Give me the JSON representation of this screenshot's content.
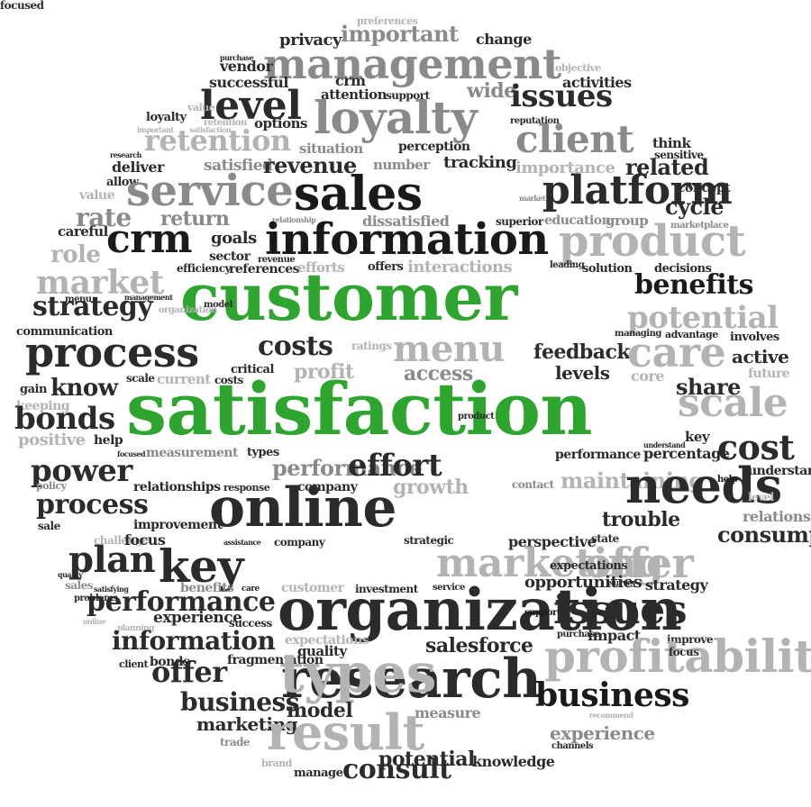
{
  "words": [
    {
      "text": "preferences",
      "tone": "l"
    },
    {
      "text": "privacy",
      "tone": "d"
    },
    {
      "text": "important",
      "tone": "g"
    },
    {
      "text": "change",
      "tone": "d"
    },
    {
      "text": "management",
      "tone": "g"
    },
    {
      "text": "vendor",
      "tone": "d"
    },
    {
      "text": "purchase",
      "tone": "d"
    },
    {
      "text": "crm",
      "tone": "d"
    },
    {
      "text": "objective",
      "tone": "l"
    },
    {
      "text": "successful",
      "tone": "d"
    },
    {
      "text": "activities",
      "tone": "d"
    },
    {
      "text": "attention",
      "tone": "d"
    },
    {
      "text": "support",
      "tone": "d"
    },
    {
      "text": "wide",
      "tone": "g"
    },
    {
      "text": "issues",
      "tone": "d"
    },
    {
      "text": "level",
      "tone": "d"
    },
    {
      "text": "loyalty",
      "tone": "g"
    },
    {
      "text": "value",
      "tone": "l"
    },
    {
      "text": "loyalty",
      "tone": "d"
    },
    {
      "text": "retention",
      "tone": "l"
    },
    {
      "text": "reputation",
      "tone": "d"
    },
    {
      "text": "options",
      "tone": "d"
    },
    {
      "text": "important",
      "tone": "l"
    },
    {
      "text": "satisfaction",
      "tone": "l"
    },
    {
      "text": "retention",
      "tone": "l"
    },
    {
      "text": "client",
      "tone": "g"
    },
    {
      "text": "think",
      "tone": "d"
    },
    {
      "text": "situation",
      "tone": "g"
    },
    {
      "text": "perception",
      "tone": "d"
    },
    {
      "text": "sensitive",
      "tone": "d"
    },
    {
      "text": "research",
      "tone": "d"
    },
    {
      "text": "deliver",
      "tone": "d"
    },
    {
      "text": "satisfied",
      "tone": "g"
    },
    {
      "text": "revenue",
      "tone": "d"
    },
    {
      "text": "number",
      "tone": "g"
    },
    {
      "text": "tracking",
      "tone": "d"
    },
    {
      "text": "importance",
      "tone": "l"
    },
    {
      "text": "related",
      "tone": "d"
    },
    {
      "text": "allow",
      "tone": "d"
    },
    {
      "text": "value",
      "tone": "l"
    },
    {
      "text": "service",
      "tone": "g"
    },
    {
      "text": "sales",
      "tone": "k"
    },
    {
      "text": "platform",
      "tone": "d"
    },
    {
      "text": "concept",
      "tone": "d"
    },
    {
      "text": "market",
      "tone": "g"
    },
    {
      "text": "cycle",
      "tone": "d"
    },
    {
      "text": "rate",
      "tone": "g"
    },
    {
      "text": "return",
      "tone": "g"
    },
    {
      "text": "relationship",
      "tone": "g"
    },
    {
      "text": "dissatisfied",
      "tone": "g"
    },
    {
      "text": "superior",
      "tone": "d"
    },
    {
      "text": "education",
      "tone": "g"
    },
    {
      "text": "group",
      "tone": "g"
    },
    {
      "text": "marketplace",
      "tone": "g"
    },
    {
      "text": "careful",
      "tone": "d"
    },
    {
      "text": "crm",
      "tone": "k"
    },
    {
      "text": "goals",
      "tone": "d"
    },
    {
      "text": "information",
      "tone": "k"
    },
    {
      "text": "product",
      "tone": "l"
    },
    {
      "text": "role",
      "tone": "l"
    },
    {
      "text": "sector",
      "tone": "d"
    },
    {
      "text": "revenue",
      "tone": "d"
    },
    {
      "text": "efficiency",
      "tone": "d"
    },
    {
      "text": "references",
      "tone": "d"
    },
    {
      "text": "efforts",
      "tone": "l"
    },
    {
      "text": "offers",
      "tone": "d"
    },
    {
      "text": "interactions",
      "tone": "l"
    },
    {
      "text": "leading",
      "tone": "d"
    },
    {
      "text": "solution",
      "tone": "d"
    },
    {
      "text": "decisions",
      "tone": "d"
    },
    {
      "text": "market",
      "tone": "l"
    },
    {
      "text": "customer",
      "tone": "gr"
    },
    {
      "text": "benefits",
      "tone": "k"
    },
    {
      "text": "menu",
      "tone": "d"
    },
    {
      "text": "management",
      "tone": "d"
    },
    {
      "text": "organization",
      "tone": "l"
    },
    {
      "text": "strategy",
      "tone": "d"
    },
    {
      "text": "model",
      "tone": "d"
    },
    {
      "text": "potential",
      "tone": "l"
    },
    {
      "text": "communication",
      "tone": "d"
    },
    {
      "text": "managing",
      "tone": "d"
    },
    {
      "text": "advantage",
      "tone": "d"
    },
    {
      "text": "involves",
      "tone": "d"
    },
    {
      "text": "process",
      "tone": "d"
    },
    {
      "text": "costs",
      "tone": "d"
    },
    {
      "text": "ratings",
      "tone": "l"
    },
    {
      "text": "menu",
      "tone": "l"
    },
    {
      "text": "feedback",
      "tone": "d"
    },
    {
      "text": "care",
      "tone": "l"
    },
    {
      "text": "active",
      "tone": "d"
    },
    {
      "text": "profit",
      "tone": "l"
    },
    {
      "text": "critical",
      "tone": "d"
    },
    {
      "text": "access",
      "tone": "g"
    },
    {
      "text": "levels",
      "tone": "d"
    },
    {
      "text": "core",
      "tone": "l"
    },
    {
      "text": "future",
      "tone": "l"
    },
    {
      "text": "scale",
      "tone": "d"
    },
    {
      "text": "current",
      "tone": "l"
    },
    {
      "text": "costs",
      "tone": "d"
    },
    {
      "text": "share",
      "tone": "d"
    },
    {
      "text": "gain",
      "tone": "d"
    },
    {
      "text": "know",
      "tone": "d"
    },
    {
      "text": "satisfaction",
      "tone": "gr"
    },
    {
      "text": "scale",
      "tone": "l"
    },
    {
      "text": "keeping",
      "tone": "l"
    },
    {
      "text": "bonds",
      "tone": "d"
    },
    {
      "text": "product",
      "tone": "d"
    },
    {
      "text": "key",
      "tone": "d"
    },
    {
      "text": "positive",
      "tone": "l"
    },
    {
      "text": "help",
      "tone": "d"
    },
    {
      "text": "cost",
      "tone": "d"
    },
    {
      "text": "focused",
      "tone": "d"
    },
    {
      "text": "measurement",
      "tone": "g"
    },
    {
      "text": "types",
      "tone": "d"
    },
    {
      "text": "understand",
      "tone": "d"
    },
    {
      "text": "performance",
      "tone": "d"
    },
    {
      "text": "percentage",
      "tone": "d"
    },
    {
      "text": "power",
      "tone": "d"
    },
    {
      "text": "performance",
      "tone": "g"
    },
    {
      "text": "effort",
      "tone": "d"
    },
    {
      "text": "understand",
      "tone": "d"
    },
    {
      "text": "policy",
      "tone": "g"
    },
    {
      "text": "relationships",
      "tone": "d"
    },
    {
      "text": "response",
      "tone": "d"
    },
    {
      "text": "maintaining",
      "tone": "l"
    },
    {
      "text": "needs",
      "tone": "d"
    },
    {
      "text": "help",
      "tone": "k"
    },
    {
      "text": "process",
      "tone": "d"
    },
    {
      "text": "company",
      "tone": "d"
    },
    {
      "text": "growth",
      "tone": "l"
    },
    {
      "text": "contact",
      "tone": "g"
    },
    {
      "text": "level",
      "tone": "l"
    },
    {
      "text": "online",
      "tone": "d"
    },
    {
      "text": "relationship",
      "tone": "g"
    },
    {
      "text": "sale",
      "tone": "d"
    },
    {
      "text": "improvement",
      "tone": "d"
    },
    {
      "text": "trouble",
      "tone": "d"
    },
    {
      "text": "challenge",
      "tone": "l"
    },
    {
      "text": "focus",
      "tone": "d"
    },
    {
      "text": "assistance",
      "tone": "d"
    },
    {
      "text": "company",
      "tone": "d"
    },
    {
      "text": "strategic",
      "tone": "d"
    },
    {
      "text": "perspective",
      "tone": "d"
    },
    {
      "text": "state",
      "tone": "d"
    },
    {
      "text": "consumption",
      "tone": "d"
    },
    {
      "text": "plan",
      "tone": "d"
    },
    {
      "text": "key",
      "tone": "d"
    },
    {
      "text": "marketing",
      "tone": "l"
    },
    {
      "text": "offer",
      "tone": "l"
    },
    {
      "text": "quality",
      "tone": "d"
    },
    {
      "text": "expectations",
      "tone": "d"
    },
    {
      "text": "sales",
      "tone": "g"
    },
    {
      "text": "satisfying",
      "tone": "d"
    },
    {
      "text": "benefits",
      "tone": "g"
    },
    {
      "text": "care",
      "tone": "d"
    },
    {
      "text": "customer",
      "tone": "l"
    },
    {
      "text": "investment",
      "tone": "d"
    },
    {
      "text": "service",
      "tone": "d"
    },
    {
      "text": "opportunities",
      "tone": "d"
    },
    {
      "text": "survey",
      "tone": "d"
    },
    {
      "text": "strategy",
      "tone": "d"
    },
    {
      "text": "problems",
      "tone": "d"
    },
    {
      "text": "performance",
      "tone": "d"
    },
    {
      "text": "organization",
      "tone": "d"
    },
    {
      "text": "support",
      "tone": "k"
    },
    {
      "text": "issues",
      "tone": "d"
    },
    {
      "text": "online",
      "tone": "l"
    },
    {
      "text": "experience",
      "tone": "d"
    },
    {
      "text": "success",
      "tone": "d"
    },
    {
      "text": "planning",
      "tone": "l"
    },
    {
      "text": "information",
      "tone": "d"
    },
    {
      "text": "expectations",
      "tone": "l"
    },
    {
      "text": "salesforce",
      "tone": "d"
    },
    {
      "text": "purchase",
      "tone": "d"
    },
    {
      "text": "impact",
      "tone": "d"
    },
    {
      "text": "improve",
      "tone": "d"
    },
    {
      "text": "quality",
      "tone": "d"
    },
    {
      "text": "profitability",
      "tone": "l"
    },
    {
      "text": "focus",
      "tone": "d"
    },
    {
      "text": "client",
      "tone": "d"
    },
    {
      "text": "bonds",
      "tone": "d"
    },
    {
      "text": "fragmentation",
      "tone": "d"
    },
    {
      "text": "offer",
      "tone": "d"
    },
    {
      "text": "research",
      "tone": "d"
    },
    {
      "text": "business",
      "tone": "k"
    },
    {
      "text": "types",
      "tone": "l"
    },
    {
      "text": "business",
      "tone": "d"
    },
    {
      "text": "model",
      "tone": "d"
    },
    {
      "text": "measure",
      "tone": "g"
    },
    {
      "text": "recommend",
      "tone": "l"
    },
    {
      "text": "marketing",
      "tone": "d"
    },
    {
      "text": "result",
      "tone": "l"
    },
    {
      "text": "experience",
      "tone": "g"
    },
    {
      "text": "trade",
      "tone": "g"
    },
    {
      "text": "channels",
      "tone": "d"
    },
    {
      "text": "potential",
      "tone": "d"
    },
    {
      "text": "brand",
      "tone": "l"
    },
    {
      "text": "knowledge",
      "tone": "d"
    },
    {
      "text": "manage",
      "tone": "d"
    },
    {
      "text": "consult",
      "tone": "d"
    },
    {
      "text": "focused",
      "tone": "d"
    }
  ]
}
